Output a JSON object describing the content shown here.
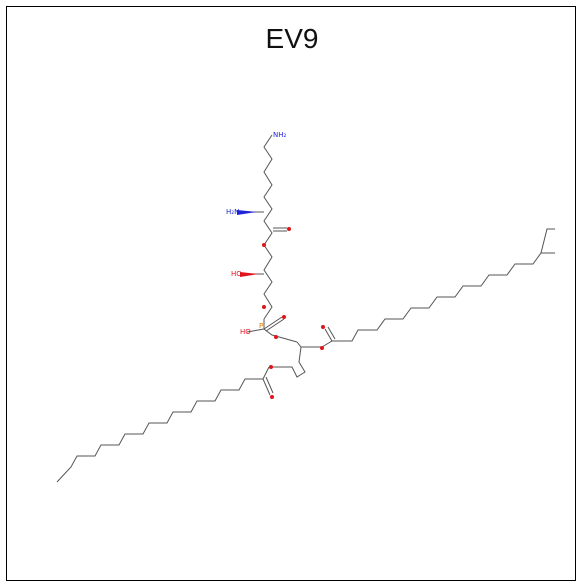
{
  "title": "EV9",
  "colors": {
    "carbon_label": "#2e9b2e",
    "oxygen": "#e0151c",
    "nitrogen": "#1f25d8",
    "phosphorus": "#e07b00",
    "bond": "#555555"
  },
  "atom_labels": {
    "n_amine": "NH₂",
    "n_alpha": "H₂N",
    "hydroxyl": "HO",
    "p_hydroxyl": "HO",
    "phosphorus": "P"
  }
}
